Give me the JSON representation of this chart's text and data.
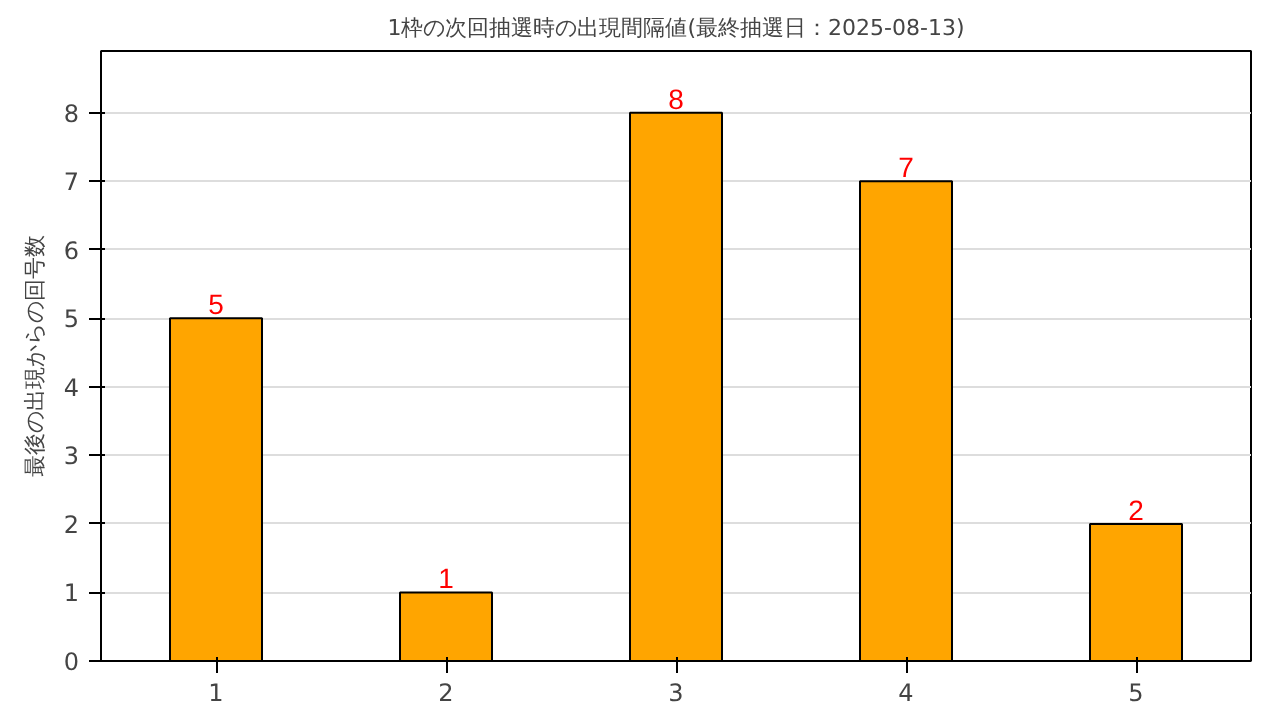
{
  "chart_data": {
    "type": "bar",
    "title": "1枠の次回抽選時の出現間隔値(最終抽選日：2025-08-13)",
    "ylabel": "最後の出現からの回号数",
    "categories": [
      "1",
      "2",
      "3",
      "4",
      "5"
    ],
    "values": [
      5,
      1,
      8,
      7,
      2
    ],
    "color": "#ffa500",
    "ylim": [
      0,
      8.9
    ],
    "yticks": [
      0,
      1,
      2,
      3,
      4,
      5,
      6,
      7,
      8
    ],
    "grid": "y",
    "data_labels": true
  }
}
